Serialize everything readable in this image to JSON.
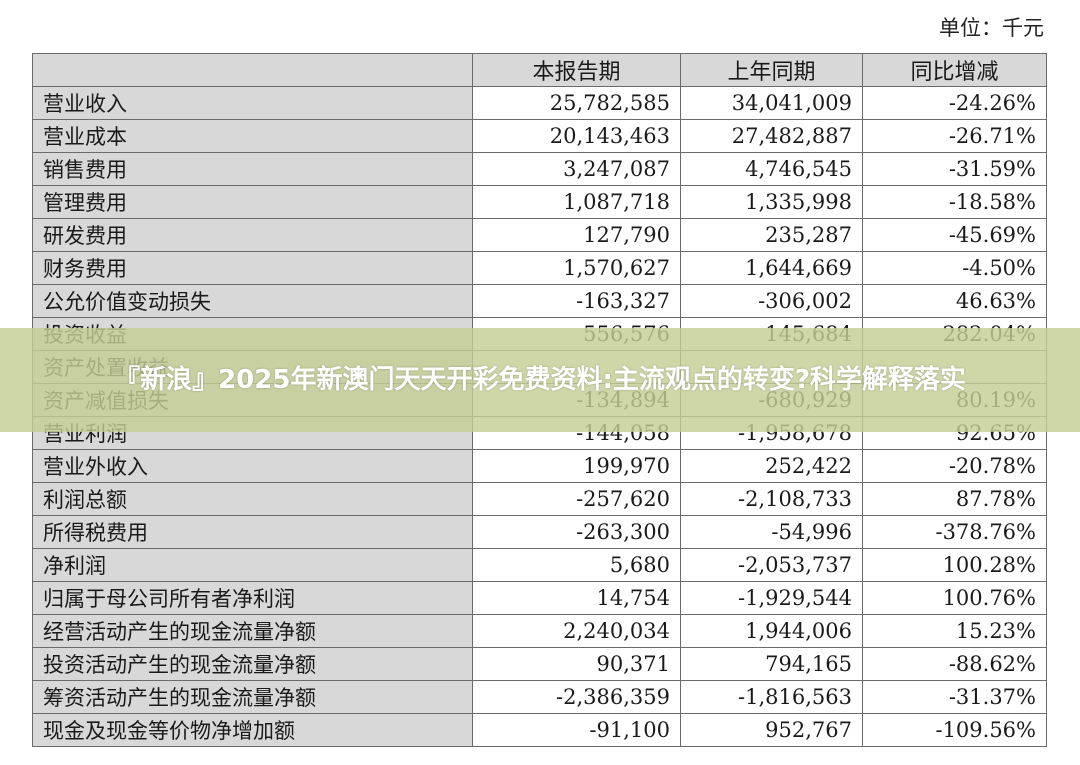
{
  "unit_label": "单位：千元",
  "table": {
    "headers": [
      "",
      "本报告期",
      "上年同期",
      "同比增减"
    ],
    "rows": [
      [
        "营业收入",
        "25,782,585",
        "34,041,009",
        "-24.26%"
      ],
      [
        "营业成本",
        "20,143,463",
        "27,482,887",
        "-26.71%"
      ],
      [
        "销售费用",
        "3,247,087",
        "4,746,545",
        "-31.59%"
      ],
      [
        "管理费用",
        "1,087,718",
        "1,335,998",
        "-18.58%"
      ],
      [
        "研发费用",
        "127,790",
        "235,287",
        "-45.69%"
      ],
      [
        "财务费用",
        "1,570,627",
        "1,644,669",
        "-4.50%"
      ],
      [
        "公允价值变动损失",
        "-163,327",
        "-306,002",
        "46.63%"
      ],
      [
        "投资收益",
        "556,576",
        "145,684",
        "282.04%"
      ],
      [
        "资产处置收益",
        "",
        "",
        ""
      ],
      [
        "资产减值损失",
        "-134,894",
        "-680,929",
        "80.19%"
      ],
      [
        "营业利润",
        "-144,058",
        "-1,958,678",
        "92.65%"
      ],
      [
        "营业外收入",
        "199,970",
        "252,422",
        "-20.78%"
      ],
      [
        "利润总额",
        "-257,620",
        "-2,108,733",
        "87.78%"
      ],
      [
        "所得税费用",
        "-263,300",
        "-54,996",
        "-378.76%"
      ],
      [
        "净利润",
        "5,680",
        "-2,053,737",
        "100.28%"
      ],
      [
        "归属于母公司所有者净利润",
        "14,754",
        "-1,929,544",
        "100.76%"
      ],
      [
        "经营活动产生的现金流量净额",
        "2,240,034",
        "1,944,006",
        "15.23%"
      ],
      [
        "投资活动产生的现金流量净额",
        "90,371",
        "794,165",
        "-88.62%"
      ],
      [
        "筹资活动产生的现金流量净额",
        "-2,386,359",
        "-1,816,563",
        "-31.37%"
      ],
      [
        "现金及现金等价物净增加额",
        "-91,100",
        "952,767",
        "-109.56%"
      ]
    ]
  },
  "banner": {
    "text": "『新浪』2025年新澳门天天开彩免费资料:主流观点的转变?科学解释落实"
  },
  "colors": {
    "header_bg": "#d8d8d8",
    "banner_bg": "#c4ce96",
    "border": "#6b6b6b"
  }
}
